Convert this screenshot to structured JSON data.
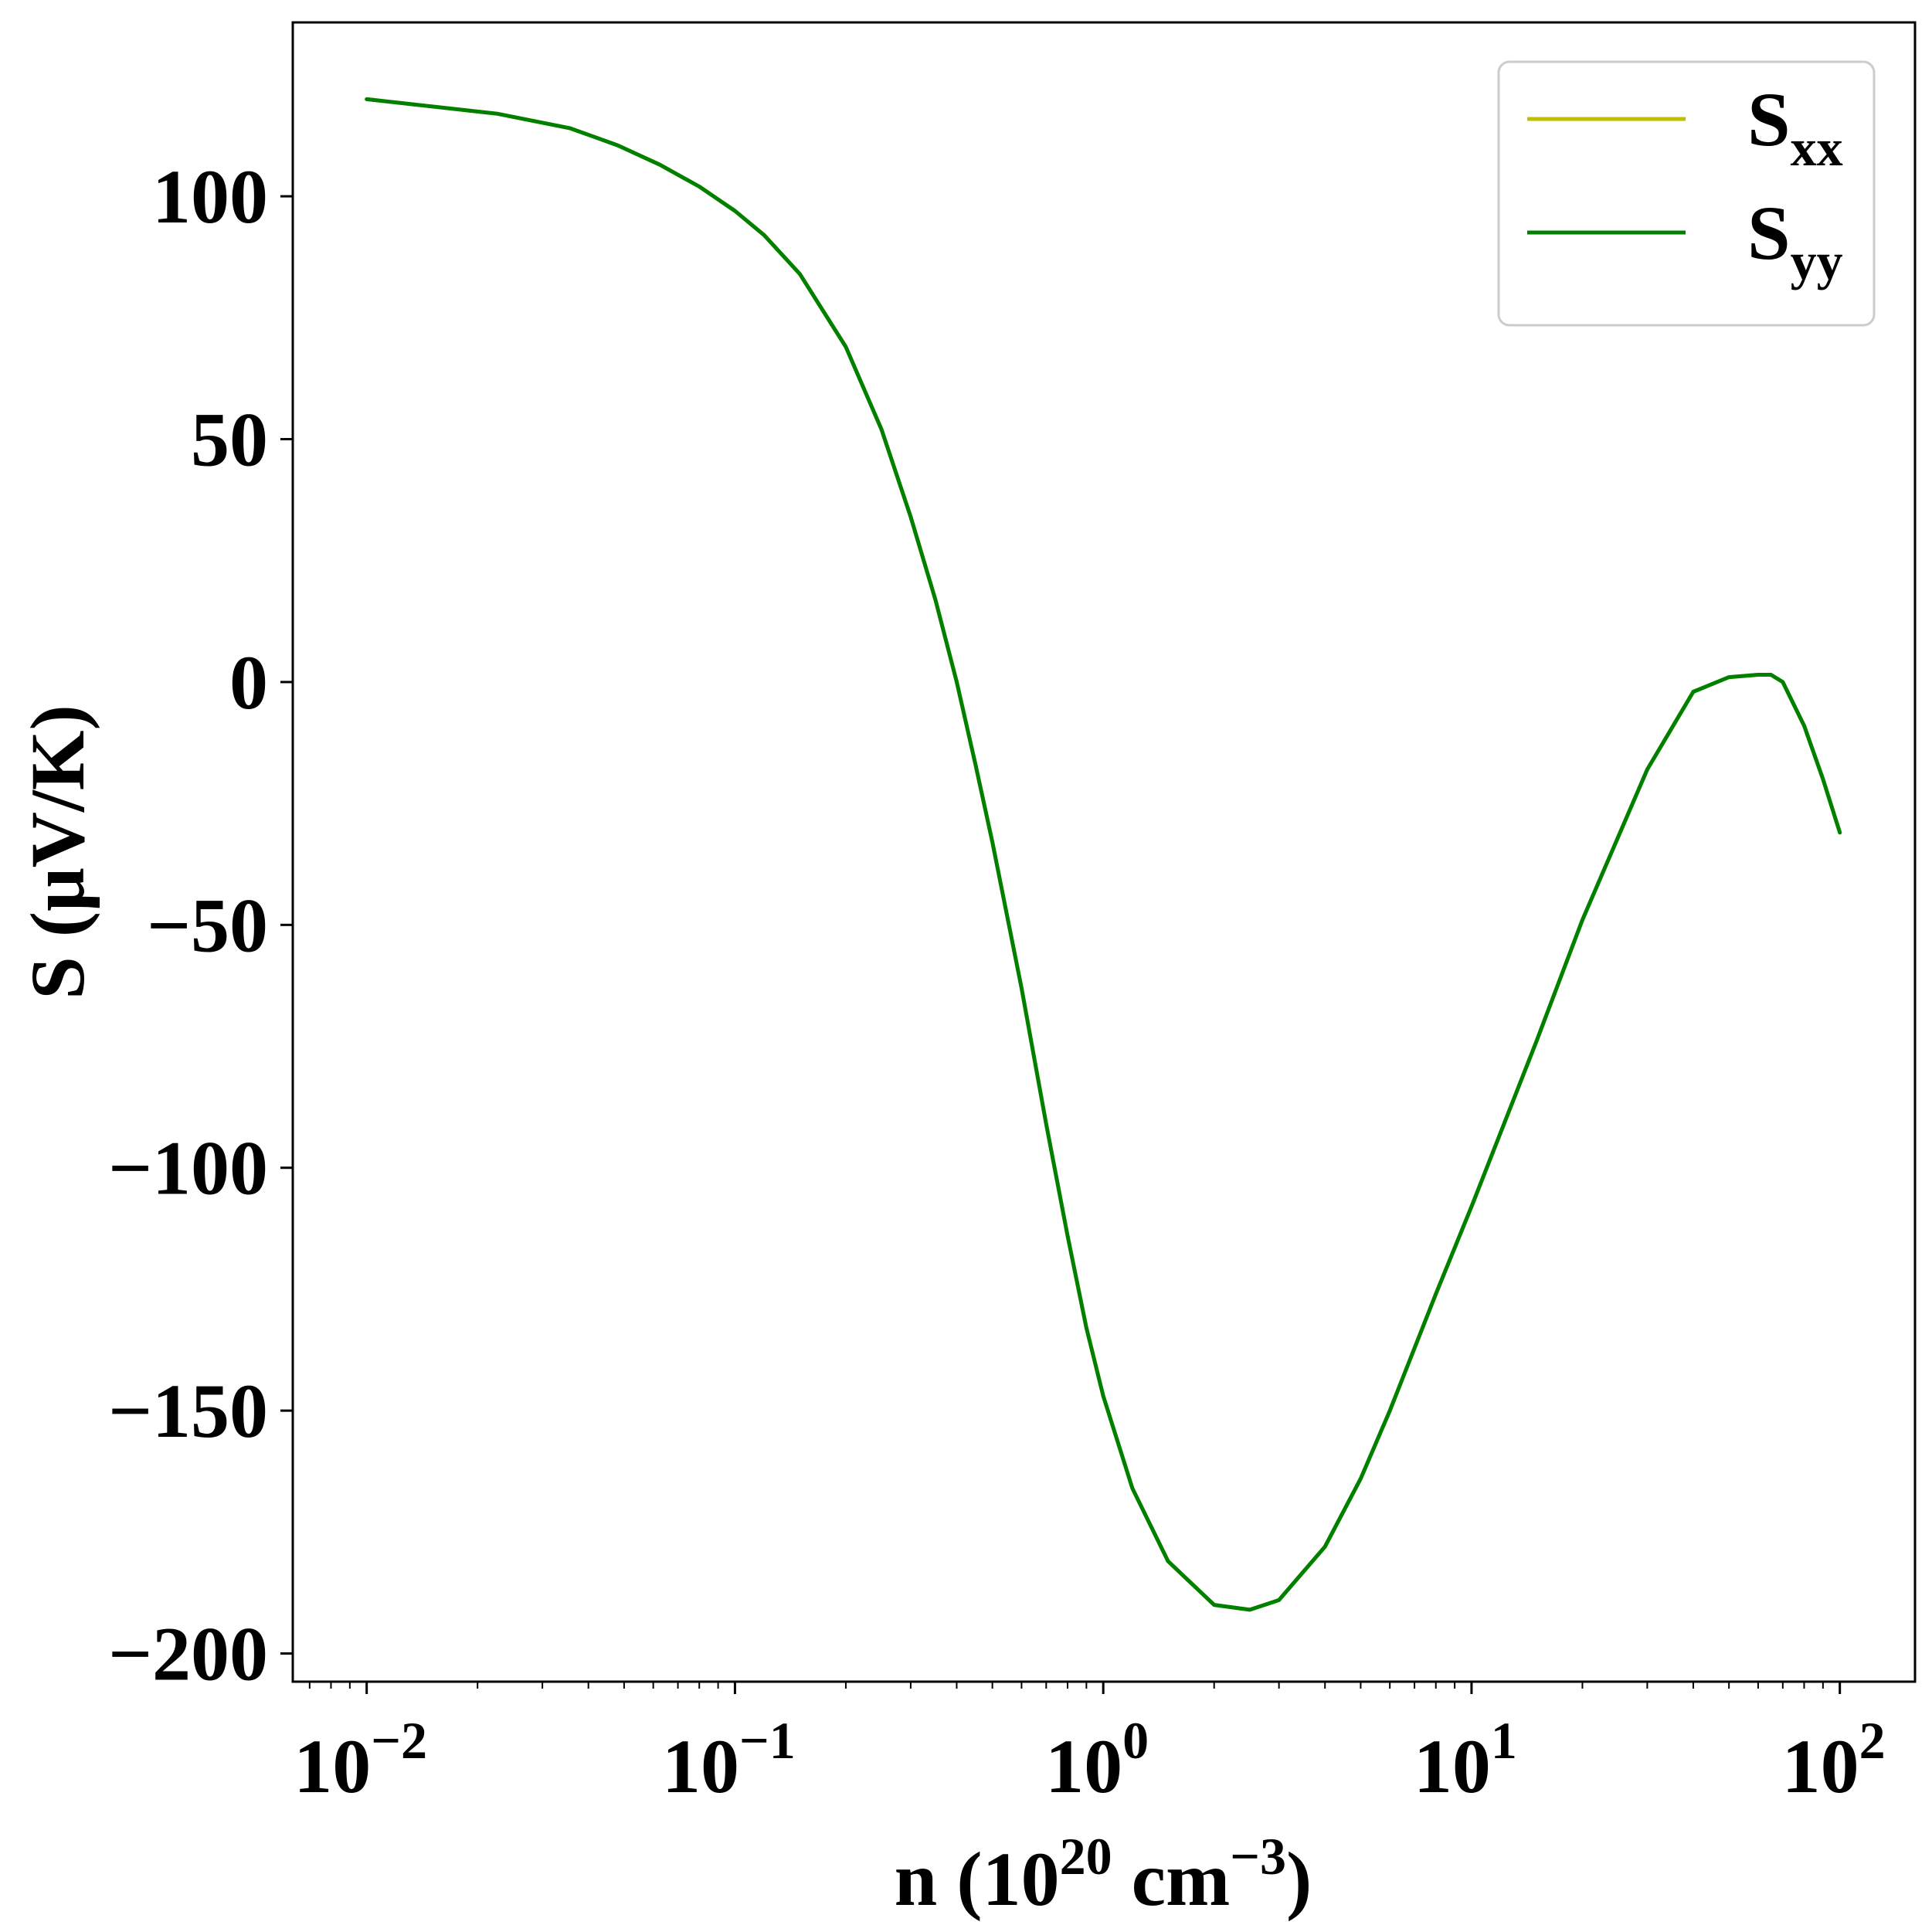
{
  "chart_data": {
    "type": "line",
    "xscale": "log",
    "xlabel": {
      "main": "n (10",
      "sup1": "20",
      "mid": " cm",
      "sup2": "−3",
      "end": ")"
    },
    "ylabel": "S (μV/K)",
    "xlim": [
      0.0063,
      160
    ],
    "ylim": [
      -205.8,
      135.8
    ],
    "xticks": [
      {
        "value": 0.01,
        "base": "10",
        "exp": "−2"
      },
      {
        "value": 0.1,
        "base": "10",
        "exp": "−1"
      },
      {
        "value": 1,
        "base": "10",
        "exp": "0"
      },
      {
        "value": 10,
        "base": "10",
        "exp": "1"
      },
      {
        "value": 100,
        "base": "10",
        "exp": "2"
      }
    ],
    "yticks": [
      {
        "value": 100,
        "label": "100"
      },
      {
        "value": 50,
        "label": "50"
      },
      {
        "value": 0,
        "label": "0"
      },
      {
        "value": -50,
        "label": "−50"
      },
      {
        "value": -100,
        "label": "−100"
      },
      {
        "value": -150,
        "label": "−150"
      },
      {
        "value": -200,
        "label": "−200"
      }
    ],
    "grid": false,
    "legend": {
      "position": "top-right",
      "entries": [
        {
          "base": "S",
          "sub": "xx",
          "color": "#bfbf00"
        },
        {
          "base": "S",
          "sub": "yy",
          "color": "#008000"
        }
      ]
    },
    "series": [
      {
        "name": "Sxx",
        "color": "#bfbf00",
        "x": [
          0.01,
          0.0226,
          0.0357,
          0.048,
          0.0625,
          0.08,
          0.1,
          0.12,
          0.15,
          0.2,
          0.25,
          0.3,
          0.35,
          0.4,
          0.45,
          0.5,
          0.6,
          0.7,
          0.8,
          0.9,
          1.0,
          1.2,
          1.5,
          2.0,
          2.5,
          3.0,
          4.0,
          5.0,
          6.0,
          8.0,
          10,
          15,
          20,
          30,
          40,
          50,
          60,
          65,
          70,
          80,
          90,
          100
        ],
        "y": [
          120,
          117,
          114,
          110.5,
          106.5,
          102,
          97,
          92,
          84,
          69,
          52,
          34,
          17,
          0,
          -17,
          -33,
          -63,
          -91,
          -114,
          -133,
          -147,
          -166,
          -181,
          -190,
          -191,
          -189,
          -178,
          -164,
          -150,
          -126,
          -108,
          -74,
          -49,
          -18,
          -2,
          1,
          1.5,
          1.5,
          0,
          -9,
          -20,
          -31
        ]
      },
      {
        "name": "Syy",
        "color": "#008000",
        "x": [
          0.01,
          0.0226,
          0.0357,
          0.048,
          0.0625,
          0.08,
          0.1,
          0.12,
          0.15,
          0.2,
          0.25,
          0.3,
          0.35,
          0.4,
          0.45,
          0.5,
          0.6,
          0.7,
          0.8,
          0.9,
          1.0,
          1.2,
          1.5,
          2.0,
          2.5,
          3.0,
          4.0,
          5.0,
          6.0,
          8.0,
          10,
          15,
          20,
          30,
          40,
          50,
          60,
          65,
          70,
          80,
          90,
          100
        ],
        "y": [
          120,
          117,
          114,
          110.5,
          106.5,
          102,
          97,
          92,
          84,
          69,
          52,
          34,
          17,
          0,
          -17,
          -33,
          -63,
          -91,
          -114,
          -133,
          -147,
          -166,
          -181,
          -190,
          -191,
          -189,
          -178,
          -164,
          -150,
          -126,
          -108,
          -74,
          -49,
          -18,
          -2,
          1,
          1.5,
          1.5,
          0,
          -9,
          -20,
          -31
        ]
      }
    ]
  }
}
